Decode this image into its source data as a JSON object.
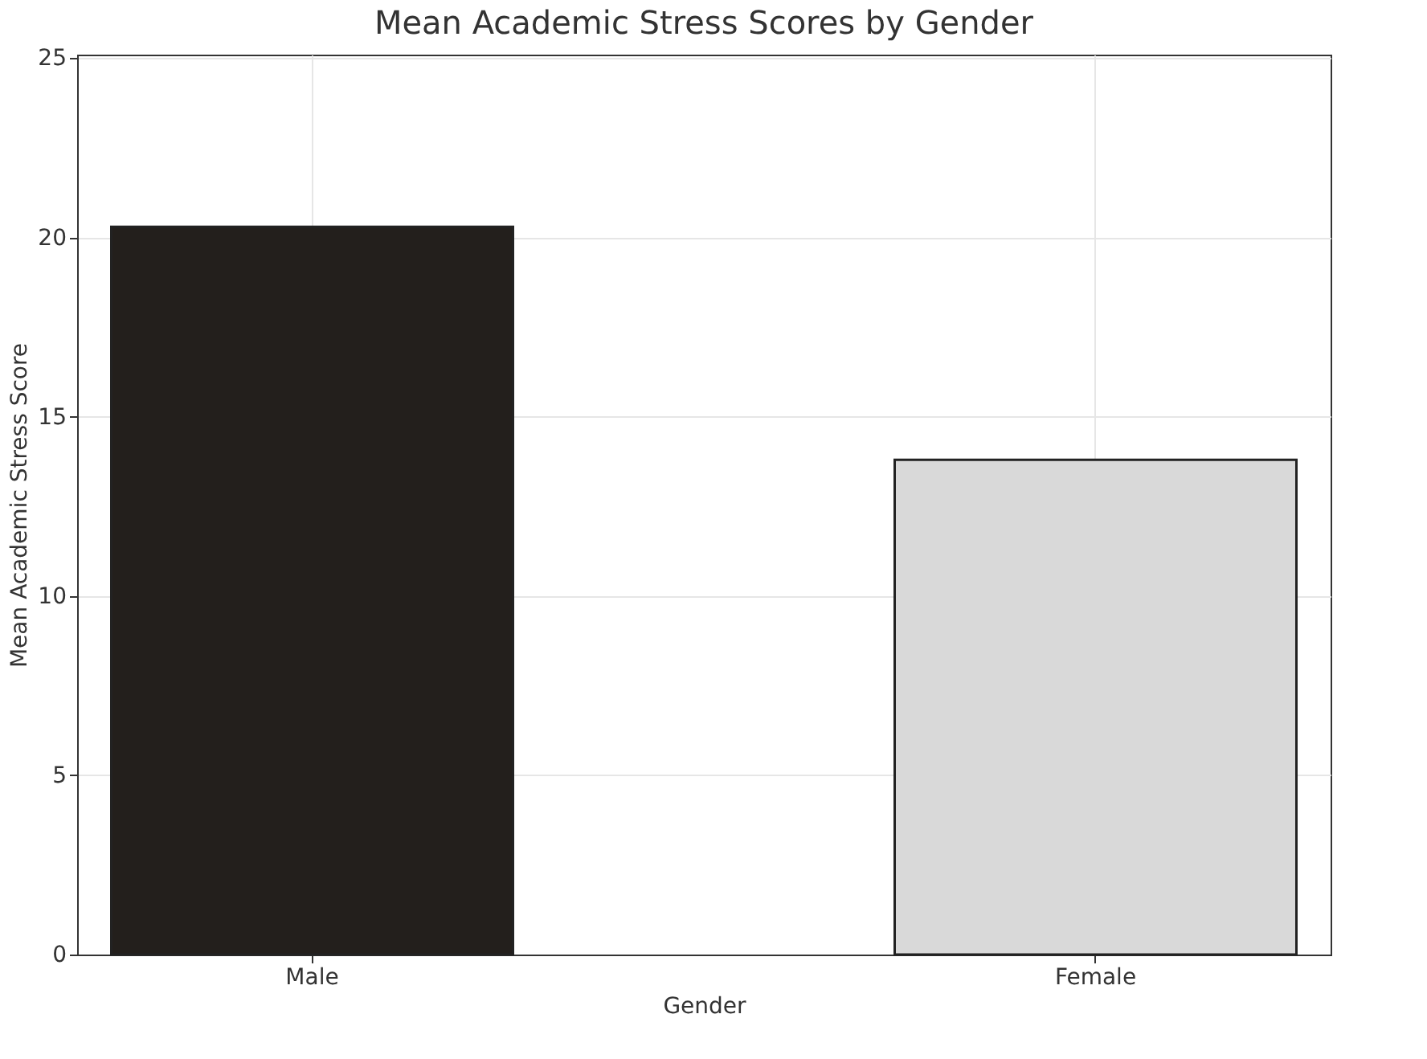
{
  "chart_data": {
    "type": "bar",
    "title": "Mean Academic Stress Scores by Gender",
    "xlabel": "Gender",
    "ylabel": "Mean Academic Stress Score",
    "categories": [
      "Male",
      "Female"
    ],
    "values": [
      20.3,
      13.8
    ],
    "colors": [
      "#231f1c",
      "#d9d9d9"
    ],
    "ylim": [
      0,
      25.1
    ],
    "yticks": [
      0,
      5,
      10,
      15,
      20,
      25
    ],
    "grid": true
  }
}
